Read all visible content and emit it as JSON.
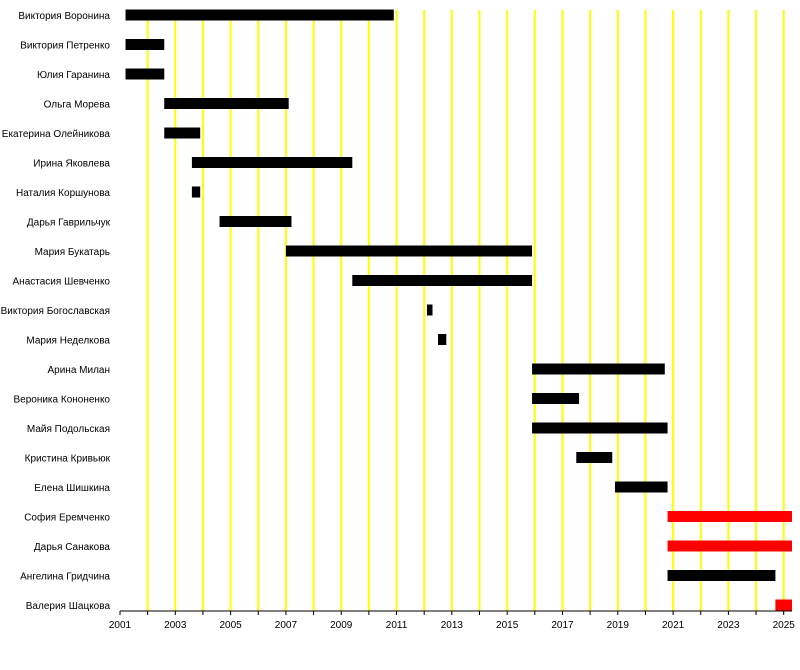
{
  "chart_data": {
    "type": "bar",
    "orientation": "horizontal-timeline",
    "xlim": [
      2001,
      2025.3
    ],
    "x_ticks": [
      "2001",
      "2003",
      "2005",
      "2007",
      "2009",
      "2011",
      "2013",
      "2015",
      "2017",
      "2019",
      "2021",
      "2023",
      "2025"
    ],
    "grid": true,
    "grid_color": "#ffff00",
    "colors": {
      "bar": "#000000",
      "highlight": "#ff0000"
    },
    "rows": [
      {
        "name": "Виктория Воронина",
        "start": 2001.2,
        "end": 2010.9,
        "highlight": false
      },
      {
        "name": "Виктория Петренко",
        "start": 2001.2,
        "end": 2002.6,
        "highlight": false
      },
      {
        "name": "Юлия Гаранина",
        "start": 2001.2,
        "end": 2002.6,
        "highlight": false
      },
      {
        "name": "Ольга Морева",
        "start": 2002.6,
        "end": 2007.1,
        "highlight": false
      },
      {
        "name": "Екатерина Олейникова",
        "start": 2002.6,
        "end": 2003.9,
        "highlight": false
      },
      {
        "name": "Ирина Яковлева",
        "start": 2003.6,
        "end": 2009.4,
        "highlight": false
      },
      {
        "name": "Наталия Коршунова",
        "start": 2003.6,
        "end": 2003.9,
        "highlight": false
      },
      {
        "name": "Дарья Гаврильчук",
        "start": 2004.6,
        "end": 2007.2,
        "highlight": false
      },
      {
        "name": "Мария Букатарь",
        "start": 2007.0,
        "end": 2015.9,
        "highlight": false
      },
      {
        "name": "Анастасия Шевченко",
        "start": 2009.4,
        "end": 2015.9,
        "highlight": false
      },
      {
        "name": "Виктория Богославская",
        "start": 2012.1,
        "end": 2012.3,
        "highlight": false
      },
      {
        "name": "Мария Неделкова",
        "start": 2012.5,
        "end": 2012.8,
        "highlight": false
      },
      {
        "name": "Арина Милан",
        "start": 2015.9,
        "end": 2020.7,
        "highlight": false
      },
      {
        "name": "Вероника Кононенко",
        "start": 2015.9,
        "end": 2017.6,
        "highlight": false
      },
      {
        "name": "Майя Подольская",
        "start": 2015.9,
        "end": 2020.8,
        "highlight": false
      },
      {
        "name": "Кристина Кривьюк",
        "start": 2017.5,
        "end": 2018.8,
        "highlight": false
      },
      {
        "name": "Елена Шишкина",
        "start": 2018.9,
        "end": 2020.8,
        "highlight": false
      },
      {
        "name": "София Еремченко",
        "start": 2020.8,
        "end": 2025.3,
        "highlight": true
      },
      {
        "name": "Дарья Санакова",
        "start": 2020.8,
        "end": 2025.3,
        "highlight": true
      },
      {
        "name": "Ангелина Гридчина",
        "start": 2020.8,
        "end": 2024.7,
        "highlight": false
      },
      {
        "name": "Валерия Шацкова",
        "start": 2024.7,
        "end": 2025.3,
        "highlight": true
      }
    ]
  }
}
